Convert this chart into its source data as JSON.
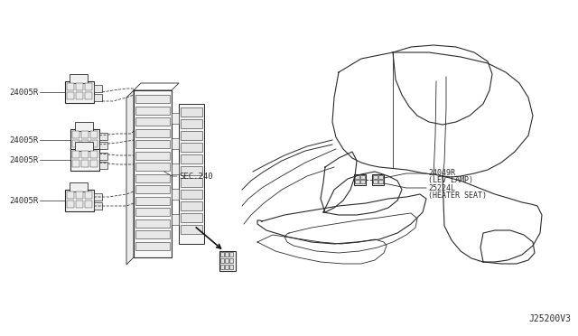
{
  "bg_color": "#ffffff",
  "line_color": "#2a2a2a",
  "label_sec240": "SEC.240",
  "label_24049R": "24049R",
  "label_lev_lamp": "(LEV LAMP)",
  "label_25224L": "25224L",
  "label_heater_seat": "(HEATER SEAT)",
  "label_J25200V3": "J25200V3",
  "part_labels": [
    "24005R",
    "24005R",
    "24005R",
    "24005R"
  ],
  "font_size_parts": 6.5,
  "font_size_label": 6.0,
  "font_size_watermark": 7.0
}
